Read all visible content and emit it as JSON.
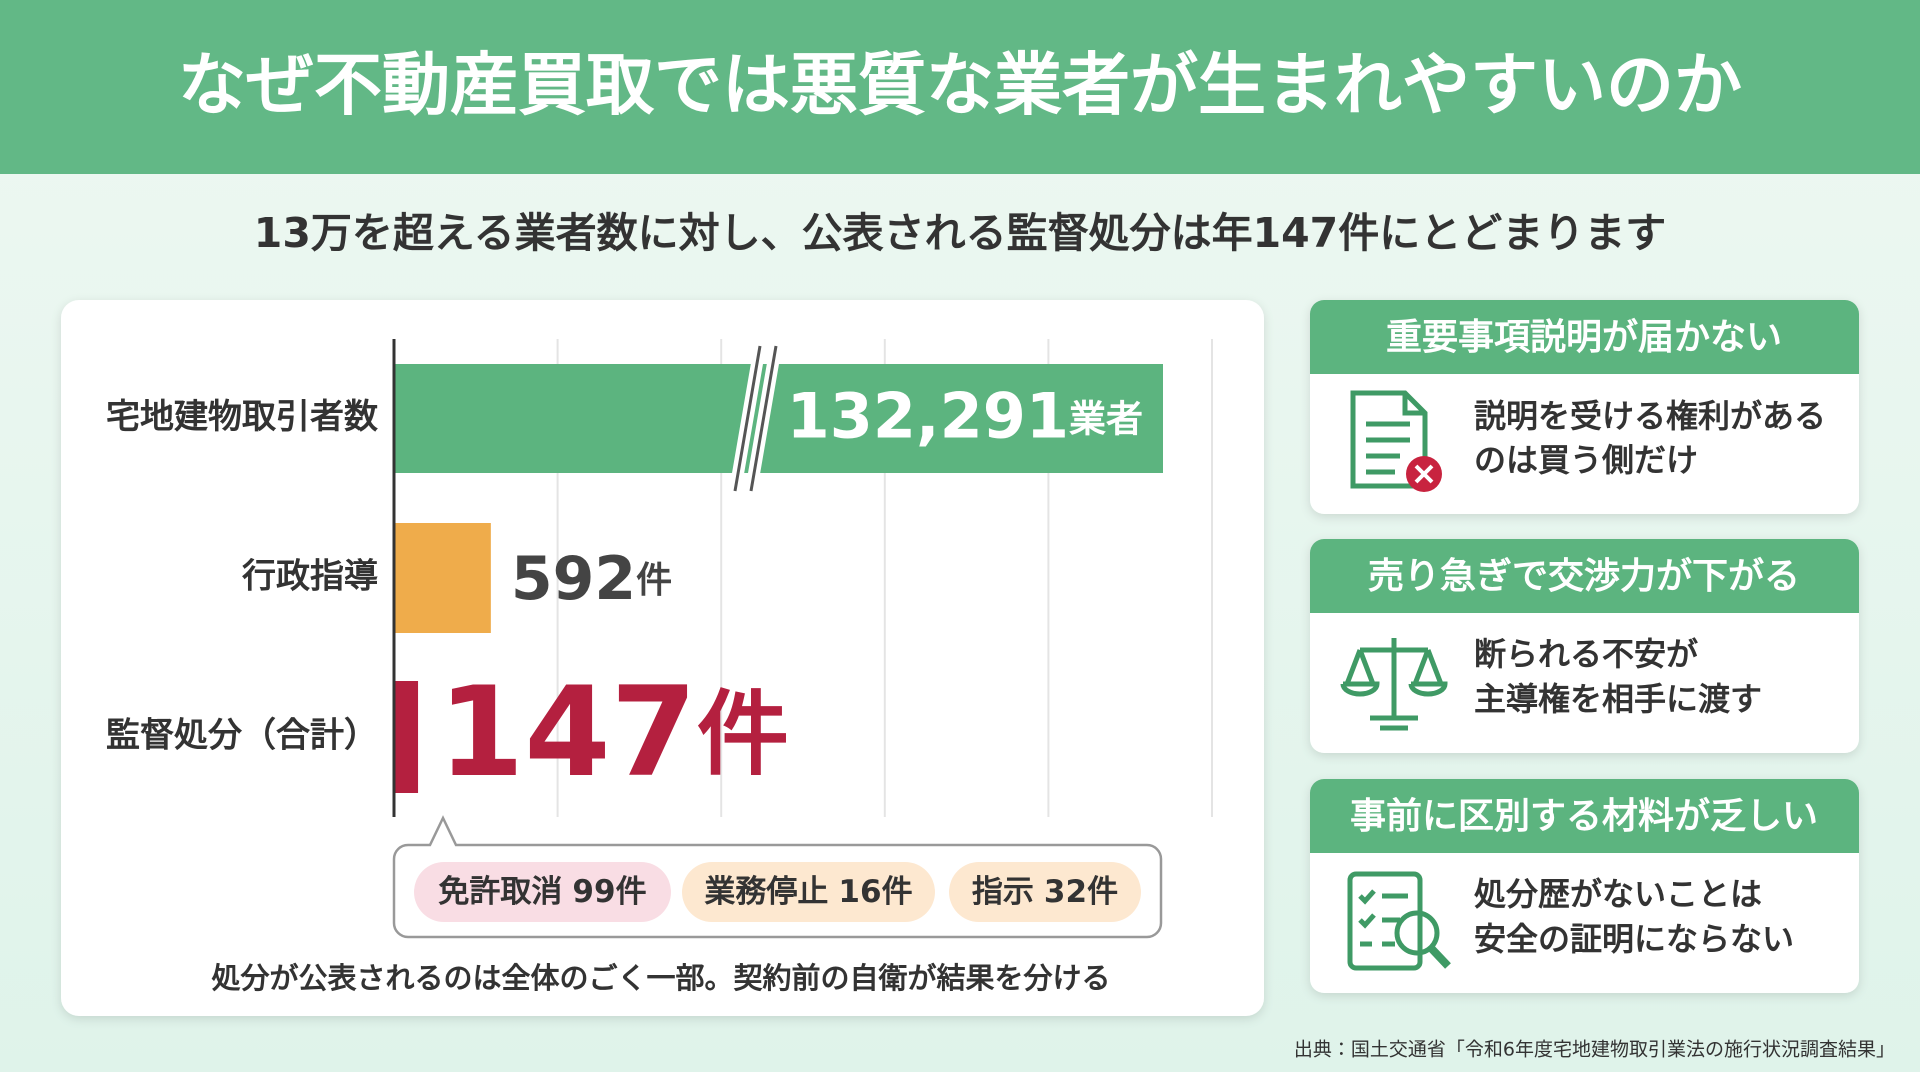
{
  "header": {
    "title": "なぜ不動産買取では悪質な業者が生まれやすいのか"
  },
  "subtitle": "13万を超える業者数に対し、公表される監督処分は年147件にとどまります",
  "chart_data": {
    "type": "bar",
    "orientation": "horizontal",
    "categories": [
      "宅地建物取引者数",
      "行政指導",
      "監督処分（合計）"
    ],
    "values": [
      132291,
      592,
      147
    ],
    "value_labels": [
      "132,291",
      "592",
      "147"
    ],
    "value_units": [
      "業者",
      "件",
      "件"
    ],
    "colors": [
      "#5cb47f",
      "#efac4b",
      "#b4203f"
    ],
    "xlim": [
      0,
      5000
    ],
    "axis_break": true,
    "grid": true,
    "breakdown": [
      {
        "label": "免許取消",
        "value": 99,
        "unit": "件"
      },
      {
        "label": "業務停止",
        "value": 16,
        "unit": "件"
      },
      {
        "label": "指示",
        "value": 32,
        "unit": "件"
      }
    ],
    "note": "処分が公表されるのは全体のごく一部。契約前の自衛が結果を分ける"
  },
  "cards": [
    {
      "title": "重要事項説明が届かない",
      "lines": [
        "説明を受ける権利がある",
        "のは買う側だけ"
      ]
    },
    {
      "title": "売り急ぎで交渉力が下がる",
      "lines": [
        "断られる不安が",
        "主導権を相手に渡す"
      ]
    },
    {
      "title": "事前に区別する材料が乏しい",
      "lines": [
        "処分歴がないことは",
        "安全の証明にならない"
      ]
    }
  ],
  "source": "出典：国土交通省「令和6年度宅地建物取引業法の施行状況調査結果」"
}
